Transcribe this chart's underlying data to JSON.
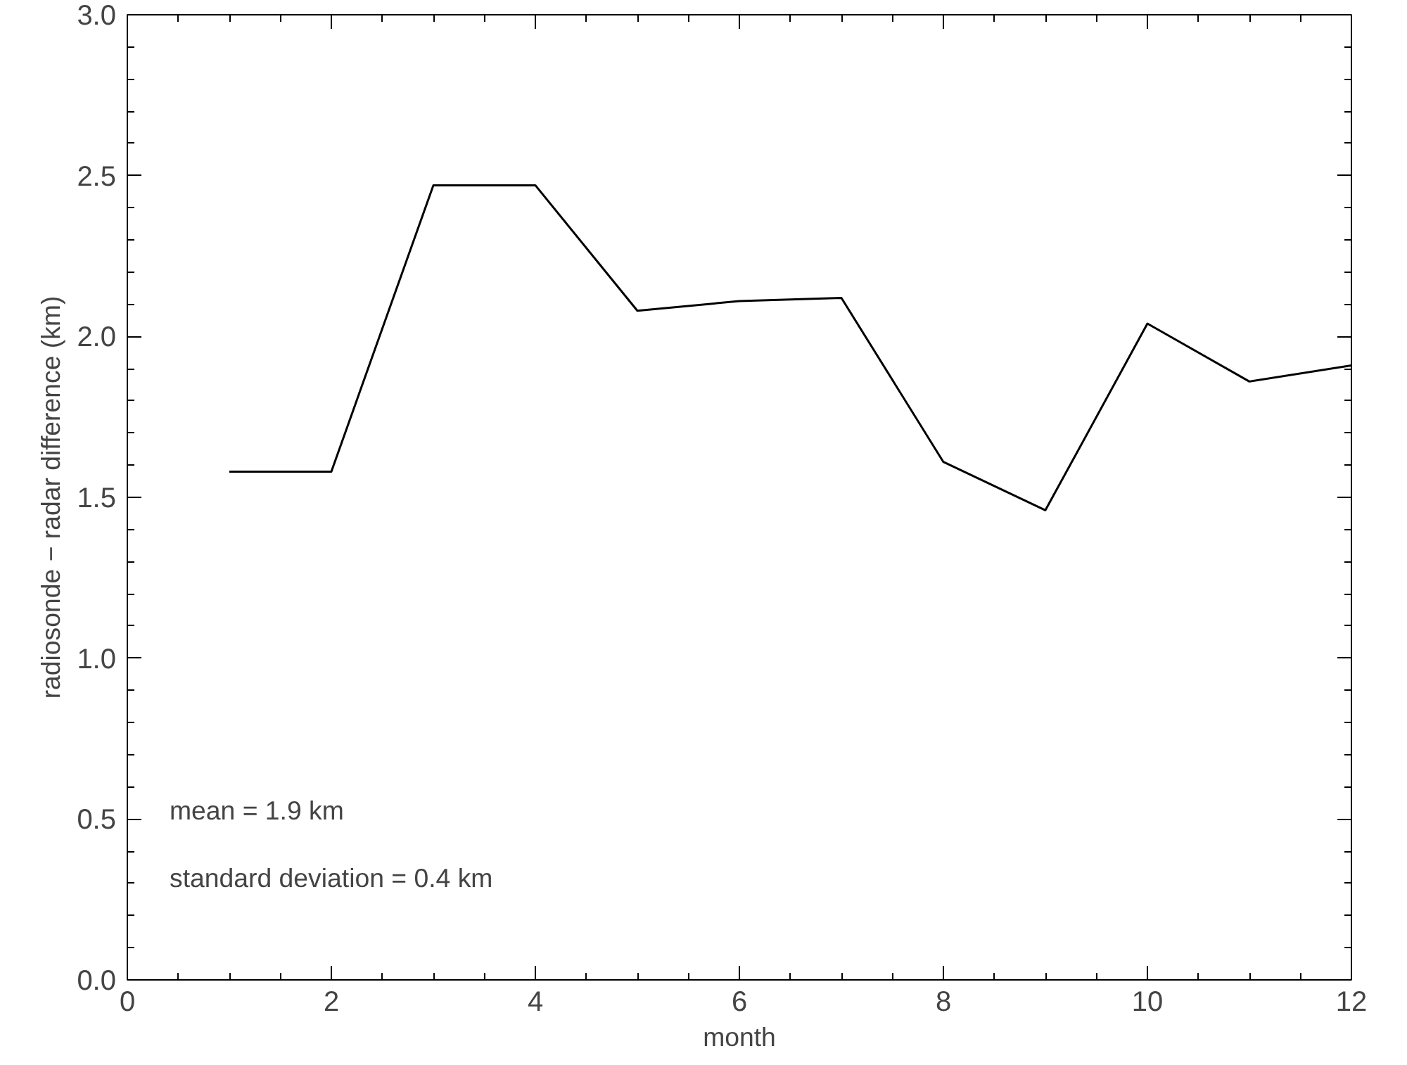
{
  "chart_data": {
    "type": "line",
    "xlabel": "month",
    "ylabel": "radiosonde − radar difference (km)",
    "x": [
      1,
      2,
      3,
      4,
      5,
      6,
      7,
      8,
      9,
      10,
      11,
      12
    ],
    "series": [
      {
        "color": "#000000",
        "values": [
          1.58,
          1.58,
          2.47,
          2.47,
          2.08,
          2.11,
          2.12,
          1.61,
          1.46,
          2.04,
          1.86,
          1.91
        ]
      }
    ],
    "xlim": [
      0,
      12
    ],
    "ylim": [
      0,
      3
    ],
    "xticks": [
      0,
      2,
      4,
      6,
      8,
      10,
      12
    ],
    "yticks": [
      {
        "value": 0,
        "label": "0.0"
      },
      {
        "value": 0.5,
        "label": "0.5"
      },
      {
        "value": 1,
        "label": "1.0"
      },
      {
        "value": 1.5,
        "label": "1.5"
      },
      {
        "value": 2,
        "label": "2.0"
      },
      {
        "value": 2.5,
        "label": "2.5"
      },
      {
        "value": 3,
        "label": "3.0"
      }
    ],
    "annotations": [
      "mean = 1.9 km",
      "standard deviation = 0.4 km"
    ],
    "grid": false,
    "marker": "none",
    "line_style": "solid"
  }
}
